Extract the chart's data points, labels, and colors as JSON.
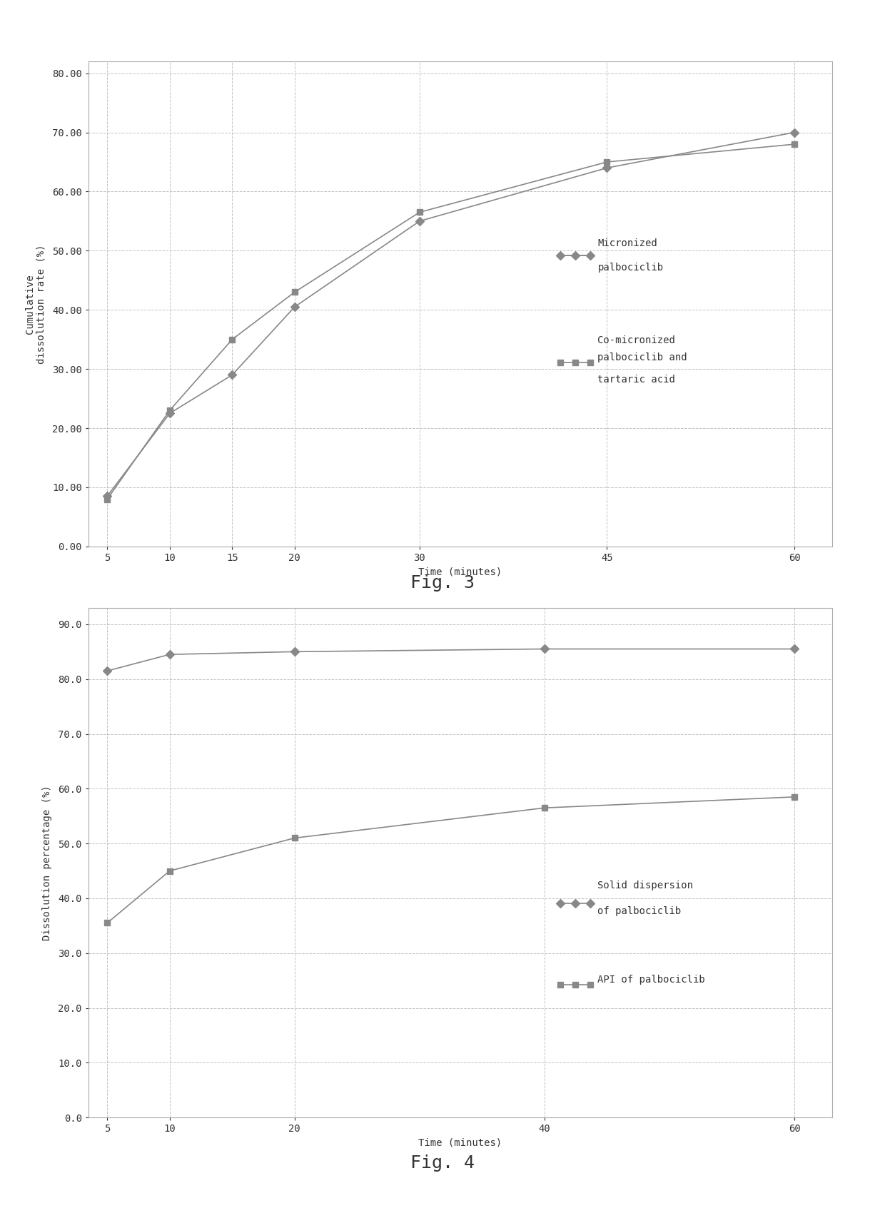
{
  "fig3": {
    "ylabel_line1": "Cumulative",
    "ylabel_line2": "dissolution rate (%)",
    "xlabel": "Time (minutes)",
    "xticks": [
      5,
      10,
      15,
      20,
      30,
      45,
      60
    ],
    "ylim": [
      0.0,
      80.0
    ],
    "yticks": [
      0.0,
      10.0,
      20.0,
      30.0,
      40.0,
      50.0,
      60.0,
      70.0,
      80.0
    ],
    "series1": {
      "label1": "Micronized",
      "label2": "palbociclib",
      "x": [
        5,
        10,
        15,
        20,
        30,
        45,
        60
      ],
      "y": [
        8.5,
        22.5,
        29.0,
        40.5,
        55.0,
        64.0,
        70.0
      ]
    },
    "series2": {
      "label1": "Co-micronized",
      "label2": "palbociclib and",
      "label3": "tartaric acid",
      "x": [
        5,
        10,
        15,
        20,
        30,
        45,
        60
      ],
      "y": [
        8.0,
        23.0,
        35.0,
        43.0,
        56.5,
        65.0,
        68.0
      ]
    },
    "caption": "Fig. 3"
  },
  "fig4": {
    "ylabel": "Dissolution percentage (%)",
    "xlabel": "Time (minutes)",
    "xticks": [
      5,
      10,
      20,
      40,
      60
    ],
    "ylim": [
      0.0,
      90.0
    ],
    "yticks": [
      0.0,
      10.0,
      20.0,
      30.0,
      40.0,
      50.0,
      60.0,
      70.0,
      80.0,
      90.0
    ],
    "series1": {
      "label1": "Solid dispersion",
      "label2": "of palbociclib",
      "x": [
        5,
        10,
        20,
        40,
        60
      ],
      "y": [
        81.5,
        84.5,
        85.0,
        85.5,
        85.5
      ]
    },
    "series2": {
      "label1": "API of palbociclib",
      "x": [
        5,
        10,
        20,
        40,
        60
      ],
      "y": [
        35.5,
        45.0,
        51.0,
        56.5,
        58.5
      ]
    },
    "caption": "Fig. 4"
  },
  "page_bg": "#ffffff",
  "chart_bg": "#ffffff",
  "chart_border": "#aaaaaa",
  "grid_color": "#bbbbbb",
  "line_color": "#888888",
  "marker_color": "#888888",
  "text_color": "#333333",
  "marker_size": 6,
  "linewidth": 1.2,
  "tick_fontsize": 10,
  "label_fontsize": 10,
  "legend_fontsize": 10,
  "caption_fontsize": 18
}
